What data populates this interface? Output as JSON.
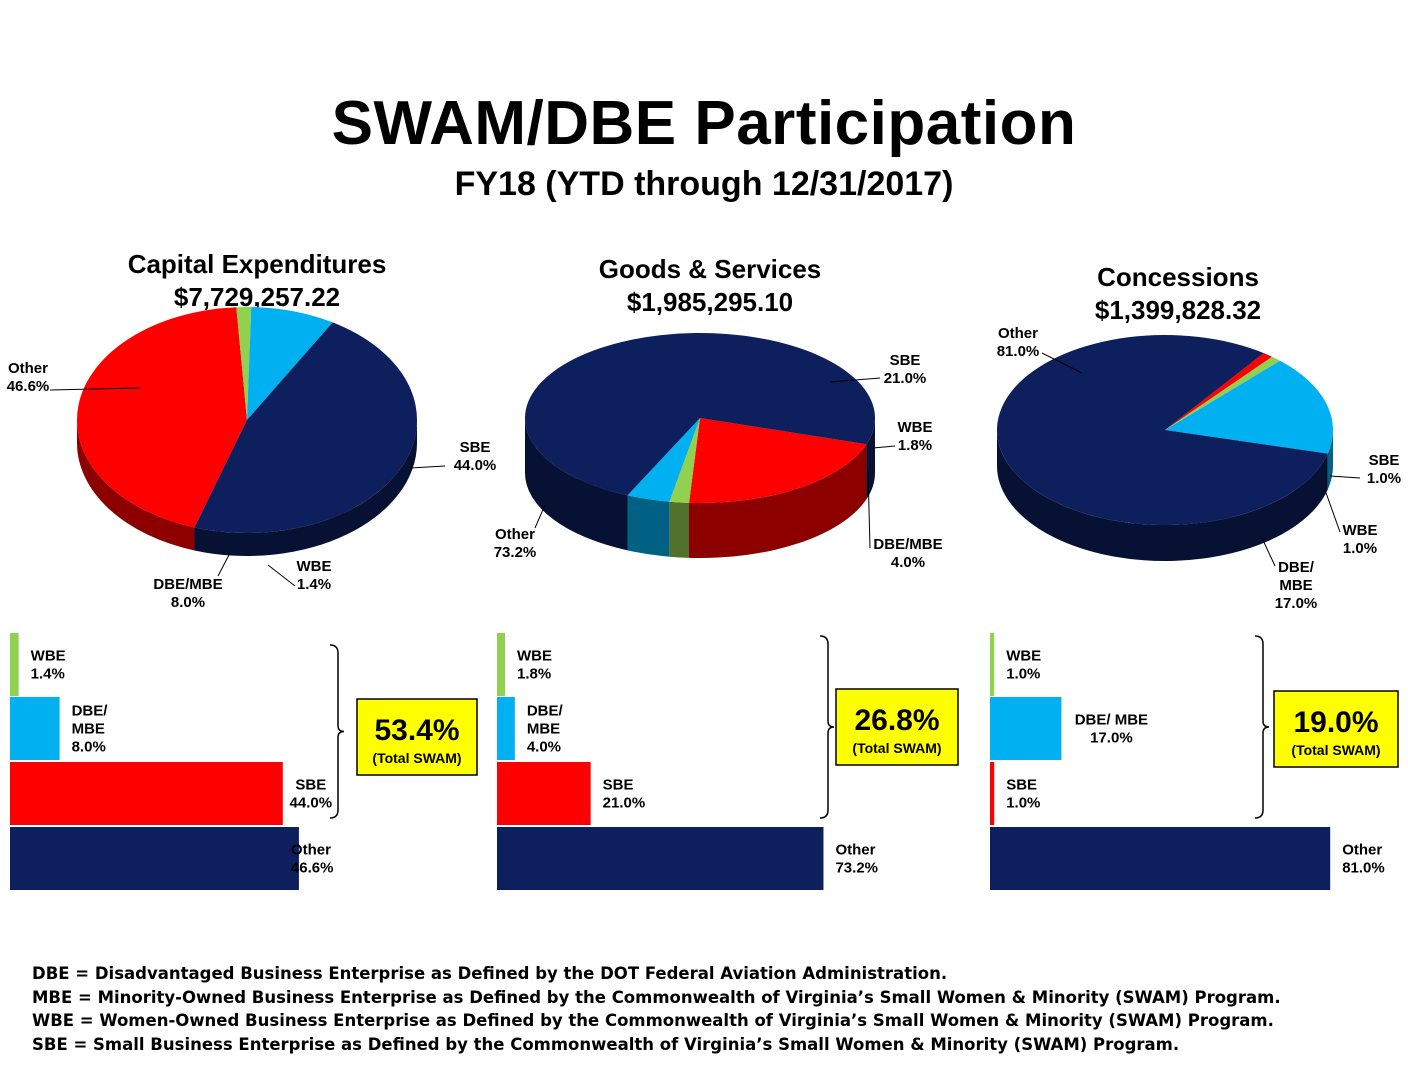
{
  "title": "SWAM/DBE Participation",
  "subtitle": "FY18 (YTD through 12/31/2017)",
  "colors": {
    "Other": "#0d1f5c",
    "SBE": "#ff0000",
    "WBE": "#92d050",
    "DBE_MBE": "#00b0f0",
    "swam_box": "#ffff00"
  },
  "chart_data": [
    {
      "type": "pie",
      "title": "Capital Expenditures",
      "subtitle": "$7,729,257.22",
      "slices": [
        {
          "category": "SBE",
          "value": 44.0,
          "label": "SBE",
          "pct": "44.0%"
        },
        {
          "category": "WBE",
          "value": 1.4,
          "label": "WBE",
          "pct": "1.4%"
        },
        {
          "category": "DBE_MBE",
          "value": 8.0,
          "label": "DBE/MBE",
          "pct": "8.0%"
        },
        {
          "category": "Other",
          "value": 46.6,
          "label": "Other",
          "pct": "46.6%"
        }
      ],
      "bars": [
        {
          "category": "WBE",
          "value": 1.4,
          "label": [
            "WBE",
            "1.4%"
          ]
        },
        {
          "category": "DBE_MBE",
          "value": 8.0,
          "label": [
            "DBE/",
            "MBE",
            "8.0%"
          ]
        },
        {
          "category": "SBE",
          "value": 44.0,
          "label": [
            "SBE",
            "44.0%"
          ]
        },
        {
          "category": "Other",
          "value": 46.6,
          "label": [
            "Other",
            "46.6%"
          ]
        }
      ],
      "total_swam": "53.4%",
      "total_swam_label": "(Total SWAM)"
    },
    {
      "type": "pie",
      "title": "Goods & Services",
      "subtitle": "$1,985,295.10",
      "slices": [
        {
          "category": "SBE",
          "value": 21.0,
          "label": "SBE",
          "pct": "21.0%"
        },
        {
          "category": "WBE",
          "value": 1.8,
          "label": "WBE",
          "pct": "1.8%"
        },
        {
          "category": "DBE_MBE",
          "value": 4.0,
          "label": "DBE/MBE",
          "pct": "4.0%"
        },
        {
          "category": "Other",
          "value": 73.2,
          "label": "Other",
          "pct": "73.2%"
        }
      ],
      "bars": [
        {
          "category": "WBE",
          "value": 1.8,
          "label": [
            "WBE",
            "1.8%"
          ]
        },
        {
          "category": "DBE_MBE",
          "value": 4.0,
          "label": [
            "DBE/",
            "MBE",
            "4.0%"
          ]
        },
        {
          "category": "SBE",
          "value": 21.0,
          "label": [
            "SBE",
            "21.0%"
          ]
        },
        {
          "category": "Other",
          "value": 73.2,
          "label": [
            "Other",
            "73.2%"
          ]
        }
      ],
      "total_swam": "26.8%",
      "total_swam_label": "(Total SWAM)"
    },
    {
      "type": "pie",
      "title": "Concessions",
      "subtitle": "$1,399,828.32",
      "slices": [
        {
          "category": "SBE",
          "value": 1.0,
          "label": "SBE",
          "pct": "1.0%"
        },
        {
          "category": "WBE",
          "value": 1.0,
          "label": "WBE",
          "pct": "1.0%"
        },
        {
          "category": "DBE_MBE",
          "value": 17.0,
          "label": "DBE/ MBE",
          "pct": "17.0%"
        },
        {
          "category": "Other",
          "value": 81.0,
          "label": "Other",
          "pct": "81.0%"
        }
      ],
      "bars": [
        {
          "category": "WBE",
          "value": 1.0,
          "label": [
            "WBE",
            "1.0%"
          ]
        },
        {
          "category": "DBE_MBE",
          "value": 17.0,
          "label": [
            "DBE/ MBE",
            "17.0%"
          ]
        },
        {
          "category": "SBE",
          "value": 1.0,
          "label": [
            "SBE",
            "1.0%"
          ]
        },
        {
          "category": "Other",
          "value": 81.0,
          "label": [
            "Other",
            "81.0%"
          ]
        }
      ],
      "total_swam": "19.0%",
      "total_swam_label": "(Total SWAM)"
    }
  ],
  "footnotes": [
    "DBE = Disadvantaged Business Enterprise as Defined by the DOT Federal Aviation Administration.",
    "MBE = Minority-Owned Business Enterprise as Defined by the Commonwealth of Virginia’s Small Women & Minority (SWAM) Program.",
    "WBE = Women-Owned Business Enterprise as Defined by the Commonwealth of Virginia’s Small Women & Minority (SWAM) Program.",
    "SBE = Small Business Enterprise as Defined by the Commonwealth of Virginia’s Small Women & Minority (SWAM) Program."
  ]
}
